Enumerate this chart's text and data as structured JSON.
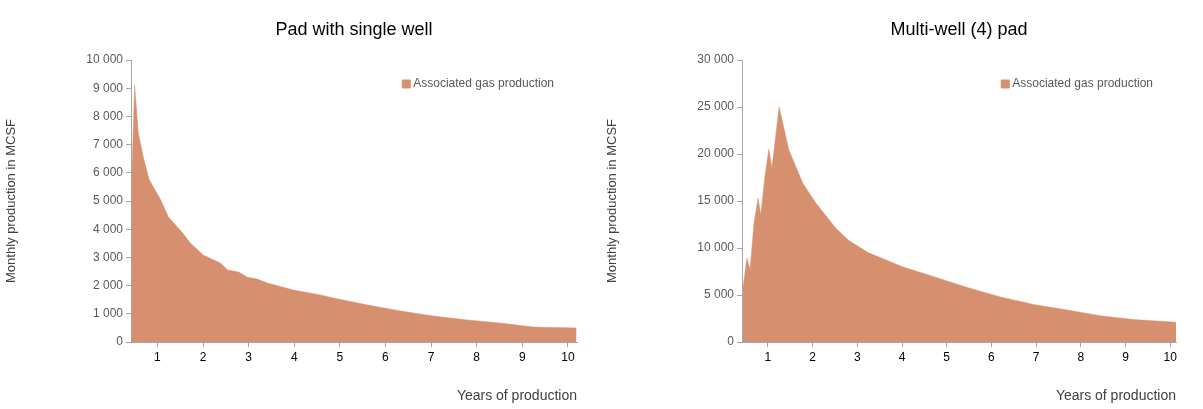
{
  "chart_data": [
    {
      "type": "area",
      "title": "Pad with single well",
      "xlabel": "Years of production",
      "ylabel": "Monthly production in MCSF",
      "legend": "top right",
      "grid": false,
      "xlim": [
        0.42,
        10.2
      ],
      "xticks": [
        1,
        2,
        3,
        4,
        5,
        6,
        7,
        8,
        9,
        10
      ],
      "ylim": [
        0,
        10000
      ],
      "yticks": [
        0,
        {
          "value": 1000,
          "label": "1 000"
        },
        {
          "value": 2000,
          "label": "2 000"
        },
        {
          "value": 3000,
          "label": "3 000"
        },
        {
          "value": 4000,
          "label": "4 000"
        },
        {
          "value": 5000,
          "label": "5 000"
        },
        {
          "value": 6000,
          "label": "6 000"
        },
        {
          "value": 7000,
          "label": "7 000"
        },
        {
          "value": 8000,
          "label": "8 000"
        },
        {
          "value": 9000,
          "label": "9 000"
        },
        {
          "value": 10000,
          "label": "10 000"
        }
      ],
      "series": [
        {
          "name": "Associated gas production",
          "color": "#d6906f",
          "x": [
            0.43,
            0.5,
            0.58,
            0.69,
            0.82,
            1.07,
            1.24,
            1.55,
            1.72,
            2.01,
            2.38,
            2.54,
            2.78,
            2.97,
            3.19,
            3.41,
            3.98,
            4.57,
            4.86,
            5.61,
            6.33,
            7.05,
            7.8,
            8.52,
            9.25,
            10.19
          ],
          "values": [
            5500,
            9100,
            7400,
            6550,
            5750,
            5040,
            4430,
            3870,
            3510,
            3080,
            2800,
            2550,
            2480,
            2300,
            2230,
            2090,
            1840,
            1670,
            1560,
            1310,
            1100,
            920,
            780,
            670,
            530,
            500
          ]
        }
      ]
    },
    {
      "type": "area",
      "title": "Multi-well (4) pad",
      "xlabel": "Years of production",
      "ylabel": "Monthly production in MCSF",
      "legend": "top right",
      "grid": false,
      "xlim": [
        0.42,
        10.13
      ],
      "xticks": [
        1,
        2,
        3,
        4,
        5,
        6,
        7,
        8,
        9,
        10
      ],
      "ylim": [
        0,
        30000
      ],
      "yticks": [
        0,
        {
          "value": 5000,
          "label": "5 000"
        },
        {
          "value": 10000,
          "label": "10 000"
        },
        {
          "value": 15000,
          "label": "15 000"
        },
        {
          "value": 20000,
          "label": "20 000"
        },
        {
          "value": 25000,
          "label": "25 000"
        },
        {
          "value": 30000,
          "label": "30 000"
        }
      ],
      "series": [
        {
          "name": "Associated gas production",
          "color": "#d6906f",
          "x": [
            0.44,
            0.53,
            0.6,
            0.69,
            0.78,
            0.84,
            0.93,
            1.02,
            1.09,
            1.25,
            1.47,
            1.78,
            2.07,
            2.52,
            2.81,
            3.25,
            4.01,
            4.75,
            5.46,
            6.2,
            6.94,
            7.7,
            8.43,
            9.17,
            10.13
          ],
          "values": [
            5700,
            8900,
            7700,
            12700,
            15300,
            13500,
            17500,
            20500,
            18500,
            25000,
            20400,
            16900,
            14800,
            12100,
            10800,
            9500,
            8000,
            6900,
            5800,
            4800,
            4000,
            3400,
            2800,
            2400,
            2100
          ]
        }
      ]
    }
  ]
}
